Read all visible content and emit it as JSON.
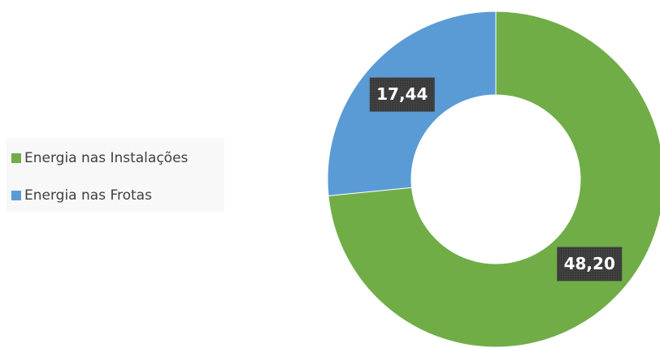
{
  "chart_data": {
    "type": "donut",
    "categories": [
      "Energia nas Instalações",
      "Energia nas Frotas"
    ],
    "values": [
      48.2,
      17.44
    ],
    "value_labels": [
      "48,20",
      "17,44"
    ],
    "colors": [
      "#70ad47",
      "#5b9bd5"
    ],
    "legend": "left"
  }
}
